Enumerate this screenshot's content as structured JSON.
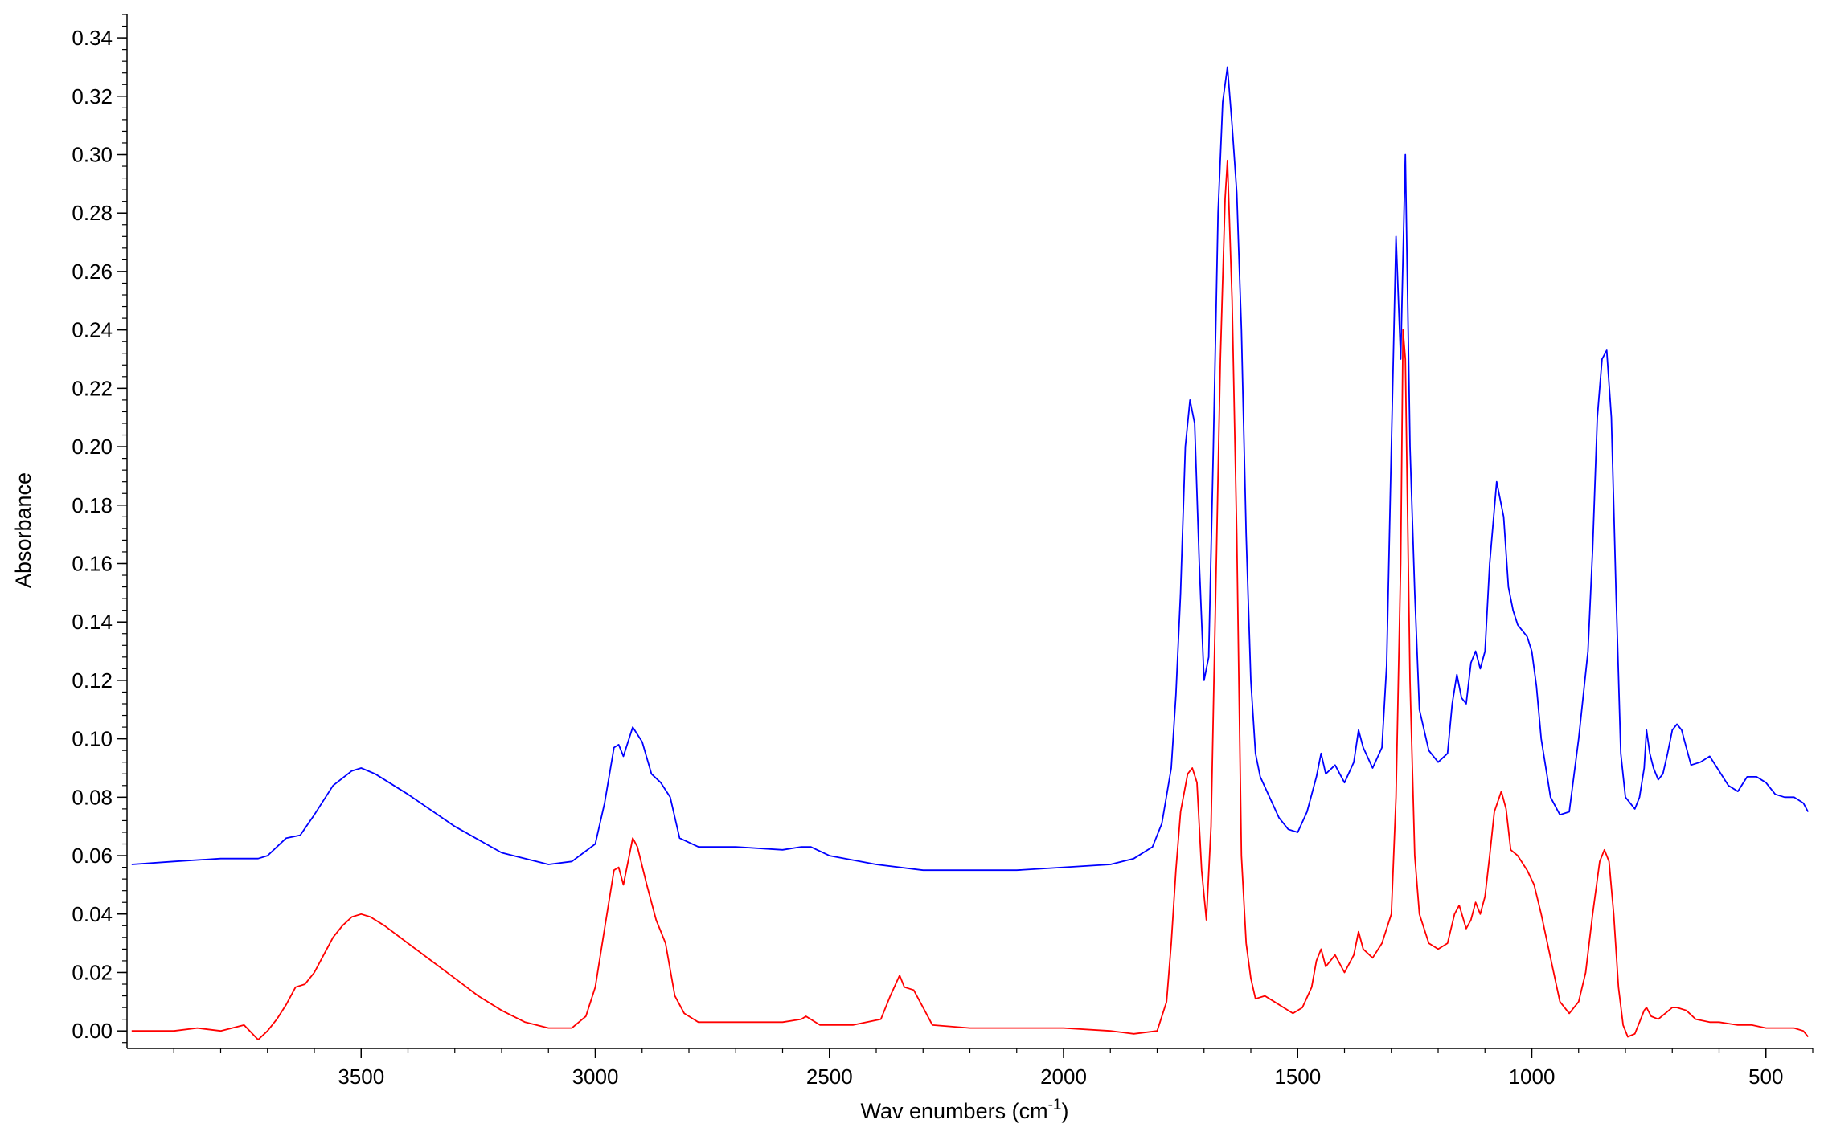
{
  "chart_data": {
    "type": "line",
    "title": "",
    "xlabel": "Wav enumbers (cm",
    "xlabel_sup": "-1",
    "xlabel_end": ")",
    "ylabel": "Absorbance",
    "xlim": [
      4000,
      400
    ],
    "x_reversed": true,
    "ylim": [
      -0.006,
      0.348
    ],
    "grid": false,
    "x_ticks": [
      3500,
      3000,
      2500,
      2000,
      1500,
      1000,
      500
    ],
    "x_tick_labels": [
      "3500",
      "3000",
      "2500",
      "2000",
      "1500",
      "1000",
      "500"
    ],
    "y_ticks": [
      0.0,
      0.02,
      0.04,
      0.06,
      0.08,
      0.1,
      0.12,
      0.14,
      0.16,
      0.18,
      0.2,
      0.22,
      0.24,
      0.26,
      0.28,
      0.3,
      0.32,
      0.34
    ],
    "y_tick_labels": [
      "0.00",
      "0.02",
      "0.04",
      "0.06",
      "0.08",
      "0.10",
      "0.12",
      "0.14",
      "0.16",
      "0.18",
      "0.20",
      "0.22",
      "0.24",
      "0.26",
      "0.28",
      "0.30",
      "0.32",
      "0.34"
    ],
    "series": [
      {
        "color": "#0000ff",
        "points": [
          [
            3990,
            0.057
          ],
          [
            3900,
            0.058
          ],
          [
            3800,
            0.059
          ],
          [
            3720,
            0.059
          ],
          [
            3700,
            0.06
          ],
          [
            3660,
            0.066
          ],
          [
            3630,
            0.067
          ],
          [
            3600,
            0.074
          ],
          [
            3560,
            0.084
          ],
          [
            3520,
            0.089
          ],
          [
            3500,
            0.09
          ],
          [
            3470,
            0.088
          ],
          [
            3400,
            0.081
          ],
          [
            3300,
            0.07
          ],
          [
            3200,
            0.061
          ],
          [
            3100,
            0.057
          ],
          [
            3050,
            0.058
          ],
          [
            3000,
            0.064
          ],
          [
            2980,
            0.078
          ],
          [
            2960,
            0.097
          ],
          [
            2950,
            0.098
          ],
          [
            2940,
            0.094
          ],
          [
            2920,
            0.104
          ],
          [
            2900,
            0.099
          ],
          [
            2880,
            0.088
          ],
          [
            2860,
            0.085
          ],
          [
            2840,
            0.08
          ],
          [
            2820,
            0.066
          ],
          [
            2780,
            0.063
          ],
          [
            2700,
            0.063
          ],
          [
            2600,
            0.062
          ],
          [
            2560,
            0.063
          ],
          [
            2540,
            0.063
          ],
          [
            2500,
            0.06
          ],
          [
            2400,
            0.057
          ],
          [
            2300,
            0.055
          ],
          [
            2200,
            0.055
          ],
          [
            2100,
            0.055
          ],
          [
            2000,
            0.056
          ],
          [
            1900,
            0.057
          ],
          [
            1850,
            0.059
          ],
          [
            1810,
            0.063
          ],
          [
            1790,
            0.071
          ],
          [
            1770,
            0.09
          ],
          [
            1760,
            0.115
          ],
          [
            1750,
            0.15
          ],
          [
            1740,
            0.2
          ],
          [
            1730,
            0.216
          ],
          [
            1720,
            0.208
          ],
          [
            1710,
            0.16
          ],
          [
            1700,
            0.12
          ],
          [
            1690,
            0.128
          ],
          [
            1680,
            0.2
          ],
          [
            1670,
            0.28
          ],
          [
            1660,
            0.318
          ],
          [
            1650,
            0.33
          ],
          [
            1640,
            0.31
          ],
          [
            1630,
            0.287
          ],
          [
            1620,
            0.24
          ],
          [
            1610,
            0.17
          ],
          [
            1600,
            0.12
          ],
          [
            1590,
            0.095
          ],
          [
            1580,
            0.087
          ],
          [
            1560,
            0.08
          ],
          [
            1540,
            0.073
          ],
          [
            1520,
            0.069
          ],
          [
            1500,
            0.068
          ],
          [
            1480,
            0.075
          ],
          [
            1460,
            0.087
          ],
          [
            1450,
            0.095
          ],
          [
            1440,
            0.088
          ],
          [
            1420,
            0.091
          ],
          [
            1400,
            0.085
          ],
          [
            1380,
            0.092
          ],
          [
            1370,
            0.103
          ],
          [
            1360,
            0.097
          ],
          [
            1340,
            0.09
          ],
          [
            1320,
            0.097
          ],
          [
            1310,
            0.125
          ],
          [
            1300,
            0.2
          ],
          [
            1290,
            0.272
          ],
          [
            1280,
            0.23
          ],
          [
            1270,
            0.3
          ],
          [
            1260,
            0.2
          ],
          [
            1250,
            0.15
          ],
          [
            1240,
            0.11
          ],
          [
            1220,
            0.096
          ],
          [
            1200,
            0.092
          ],
          [
            1180,
            0.095
          ],
          [
            1170,
            0.112
          ],
          [
            1160,
            0.122
          ],
          [
            1150,
            0.114
          ],
          [
            1140,
            0.112
          ],
          [
            1130,
            0.126
          ],
          [
            1120,
            0.13
          ],
          [
            1110,
            0.124
          ],
          [
            1100,
            0.13
          ],
          [
            1090,
            0.16
          ],
          [
            1075,
            0.188
          ],
          [
            1060,
            0.176
          ],
          [
            1050,
            0.152
          ],
          [
            1040,
            0.144
          ],
          [
            1030,
            0.139
          ],
          [
            1010,
            0.135
          ],
          [
            1000,
            0.13
          ],
          [
            990,
            0.118
          ],
          [
            980,
            0.1
          ],
          [
            960,
            0.08
          ],
          [
            940,
            0.074
          ],
          [
            920,
            0.075
          ],
          [
            900,
            0.1
          ],
          [
            880,
            0.13
          ],
          [
            870,
            0.165
          ],
          [
            860,
            0.21
          ],
          [
            850,
            0.23
          ],
          [
            840,
            0.233
          ],
          [
            830,
            0.21
          ],
          [
            820,
            0.15
          ],
          [
            810,
            0.095
          ],
          [
            800,
            0.08
          ],
          [
            780,
            0.076
          ],
          [
            770,
            0.08
          ],
          [
            760,
            0.09
          ],
          [
            755,
            0.103
          ],
          [
            748,
            0.095
          ],
          [
            740,
            0.09
          ],
          [
            730,
            0.086
          ],
          [
            720,
            0.088
          ],
          [
            710,
            0.095
          ],
          [
            700,
            0.103
          ],
          [
            690,
            0.105
          ],
          [
            680,
            0.103
          ],
          [
            670,
            0.097
          ],
          [
            660,
            0.091
          ],
          [
            640,
            0.092
          ],
          [
            620,
            0.094
          ],
          [
            600,
            0.089
          ],
          [
            580,
            0.084
          ],
          [
            560,
            0.082
          ],
          [
            540,
            0.087
          ],
          [
            520,
            0.087
          ],
          [
            500,
            0.085
          ],
          [
            480,
            0.081
          ],
          [
            460,
            0.08
          ],
          [
            440,
            0.08
          ],
          [
            420,
            0.078
          ],
          [
            410,
            0.075
          ]
        ]
      },
      {
        "color": "#ff0000",
        "points": [
          [
            3990,
            0.0
          ],
          [
            3900,
            0.0
          ],
          [
            3850,
            0.001
          ],
          [
            3800,
            0.0
          ],
          [
            3750,
            0.002
          ],
          [
            3720,
            -0.003
          ],
          [
            3700,
            0.0
          ],
          [
            3680,
            0.004
          ],
          [
            3660,
            0.009
          ],
          [
            3640,
            0.015
          ],
          [
            3620,
            0.016
          ],
          [
            3600,
            0.02
          ],
          [
            3580,
            0.026
          ],
          [
            3560,
            0.032
          ],
          [
            3540,
            0.036
          ],
          [
            3520,
            0.039
          ],
          [
            3500,
            0.04
          ],
          [
            3480,
            0.039
          ],
          [
            3450,
            0.036
          ],
          [
            3400,
            0.03
          ],
          [
            3350,
            0.024
          ],
          [
            3300,
            0.018
          ],
          [
            3250,
            0.012
          ],
          [
            3200,
            0.007
          ],
          [
            3150,
            0.003
          ],
          [
            3100,
            0.001
          ],
          [
            3050,
            0.001
          ],
          [
            3020,
            0.005
          ],
          [
            3000,
            0.015
          ],
          [
            2980,
            0.035
          ],
          [
            2960,
            0.055
          ],
          [
            2950,
            0.056
          ],
          [
            2940,
            0.05
          ],
          [
            2920,
            0.066
          ],
          [
            2910,
            0.063
          ],
          [
            2890,
            0.05
          ],
          [
            2870,
            0.038
          ],
          [
            2850,
            0.03
          ],
          [
            2830,
            0.012
          ],
          [
            2810,
            0.006
          ],
          [
            2780,
            0.003
          ],
          [
            2700,
            0.003
          ],
          [
            2600,
            0.003
          ],
          [
            2560,
            0.004
          ],
          [
            2550,
            0.005
          ],
          [
            2520,
            0.002
          ],
          [
            2450,
            0.002
          ],
          [
            2390,
            0.004
          ],
          [
            2370,
            0.012
          ],
          [
            2350,
            0.019
          ],
          [
            2340,
            0.015
          ],
          [
            2320,
            0.014
          ],
          [
            2300,
            0.008
          ],
          [
            2280,
            0.002
          ],
          [
            2200,
            0.001
          ],
          [
            2100,
            0.001
          ],
          [
            2000,
            0.001
          ],
          [
            1900,
            0.0
          ],
          [
            1850,
            -0.001
          ],
          [
            1800,
            0.0
          ],
          [
            1780,
            0.01
          ],
          [
            1770,
            0.03
          ],
          [
            1760,
            0.055
          ],
          [
            1750,
            0.075
          ],
          [
            1735,
            0.088
          ],
          [
            1725,
            0.09
          ],
          [
            1715,
            0.085
          ],
          [
            1705,
            0.055
          ],
          [
            1695,
            0.038
          ],
          [
            1685,
            0.07
          ],
          [
            1675,
            0.15
          ],
          [
            1665,
            0.23
          ],
          [
            1655,
            0.285
          ],
          [
            1650,
            0.298
          ],
          [
            1640,
            0.25
          ],
          [
            1630,
            0.17
          ],
          [
            1620,
            0.06
          ],
          [
            1610,
            0.03
          ],
          [
            1600,
            0.018
          ],
          [
            1590,
            0.011
          ],
          [
            1570,
            0.012
          ],
          [
            1550,
            0.01
          ],
          [
            1530,
            0.008
          ],
          [
            1510,
            0.006
          ],
          [
            1490,
            0.008
          ],
          [
            1470,
            0.015
          ],
          [
            1460,
            0.024
          ],
          [
            1450,
            0.028
          ],
          [
            1440,
            0.022
          ],
          [
            1420,
            0.026
          ],
          [
            1400,
            0.02
          ],
          [
            1380,
            0.026
          ],
          [
            1370,
            0.034
          ],
          [
            1360,
            0.028
          ],
          [
            1340,
            0.025
          ],
          [
            1320,
            0.03
          ],
          [
            1300,
            0.04
          ],
          [
            1290,
            0.08
          ],
          [
            1280,
            0.16
          ],
          [
            1275,
            0.24
          ],
          [
            1270,
            0.23
          ],
          [
            1260,
            0.12
          ],
          [
            1250,
            0.06
          ],
          [
            1240,
            0.04
          ],
          [
            1220,
            0.03
          ],
          [
            1200,
            0.028
          ],
          [
            1180,
            0.03
          ],
          [
            1165,
            0.04
          ],
          [
            1155,
            0.043
          ],
          [
            1140,
            0.035
          ],
          [
            1130,
            0.038
          ],
          [
            1120,
            0.044
          ],
          [
            1110,
            0.04
          ],
          [
            1100,
            0.046
          ],
          [
            1090,
            0.06
          ],
          [
            1080,
            0.075
          ],
          [
            1065,
            0.082
          ],
          [
            1055,
            0.076
          ],
          [
            1045,
            0.062
          ],
          [
            1030,
            0.06
          ],
          [
            1010,
            0.055
          ],
          [
            995,
            0.05
          ],
          [
            980,
            0.04
          ],
          [
            960,
            0.025
          ],
          [
            940,
            0.01
          ],
          [
            920,
            0.006
          ],
          [
            900,
            0.01
          ],
          [
            885,
            0.02
          ],
          [
            870,
            0.04
          ],
          [
            855,
            0.058
          ],
          [
            845,
            0.062
          ],
          [
            835,
            0.058
          ],
          [
            825,
            0.04
          ],
          [
            815,
            0.015
          ],
          [
            805,
            0.002
          ],
          [
            795,
            -0.002
          ],
          [
            780,
            -0.001
          ],
          [
            770,
            0.003
          ],
          [
            760,
            0.007
          ],
          [
            755,
            0.008
          ],
          [
            745,
            0.005
          ],
          [
            730,
            0.004
          ],
          [
            715,
            0.006
          ],
          [
            700,
            0.008
          ],
          [
            690,
            0.008
          ],
          [
            670,
            0.007
          ],
          [
            650,
            0.004
          ],
          [
            620,
            0.003
          ],
          [
            600,
            0.003
          ],
          [
            560,
            0.002
          ],
          [
            530,
            0.002
          ],
          [
            500,
            0.001
          ],
          [
            470,
            0.001
          ],
          [
            440,
            0.001
          ],
          [
            420,
            0.0
          ],
          [
            410,
            -0.002
          ]
        ]
      }
    ]
  }
}
